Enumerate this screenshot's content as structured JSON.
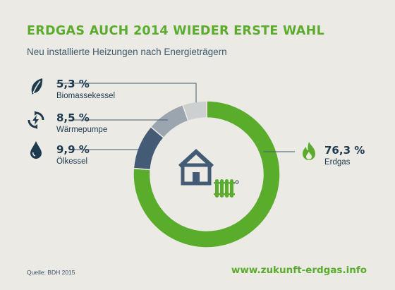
{
  "title": "ERDGAS AUCH 2014 WIEDER ERSTE WAHL",
  "subtitle": "Neu installierte Heizungen nach Energieträgern",
  "source": "Quelle: BDH 2015",
  "url": "www.zukunft-erdgas.info",
  "colors": {
    "erdgas": "#5aad2a",
    "oel": "#445b75",
    "waerme": "#9aa5b0",
    "bio": "#cdd0d0",
    "text": "#1e3a4f",
    "leader": "#3f5a6e"
  },
  "icons": {
    "bio": "leaf-icon",
    "waerme": "recycle-bolt-icon",
    "oel": "oil-drop-icon",
    "erdgas": "flame-icon",
    "center": "house-radiator-icon"
  },
  "chart_data": {
    "type": "pie",
    "variant": "donut",
    "title": "ERDGAS AUCH 2014 WIEDER ERSTE WAHL",
    "subtitle": "Neu installierte Heizungen nach Energieträgern",
    "categories": [
      "Erdgas",
      "Ölkessel",
      "Wärmepumpe",
      "Biomassekessel"
    ],
    "values": [
      76.3,
      9.9,
      8.5,
      5.3
    ],
    "labels": [
      "76,3 %",
      "9,9 %",
      "8,5 %",
      "5,3 %"
    ]
  }
}
